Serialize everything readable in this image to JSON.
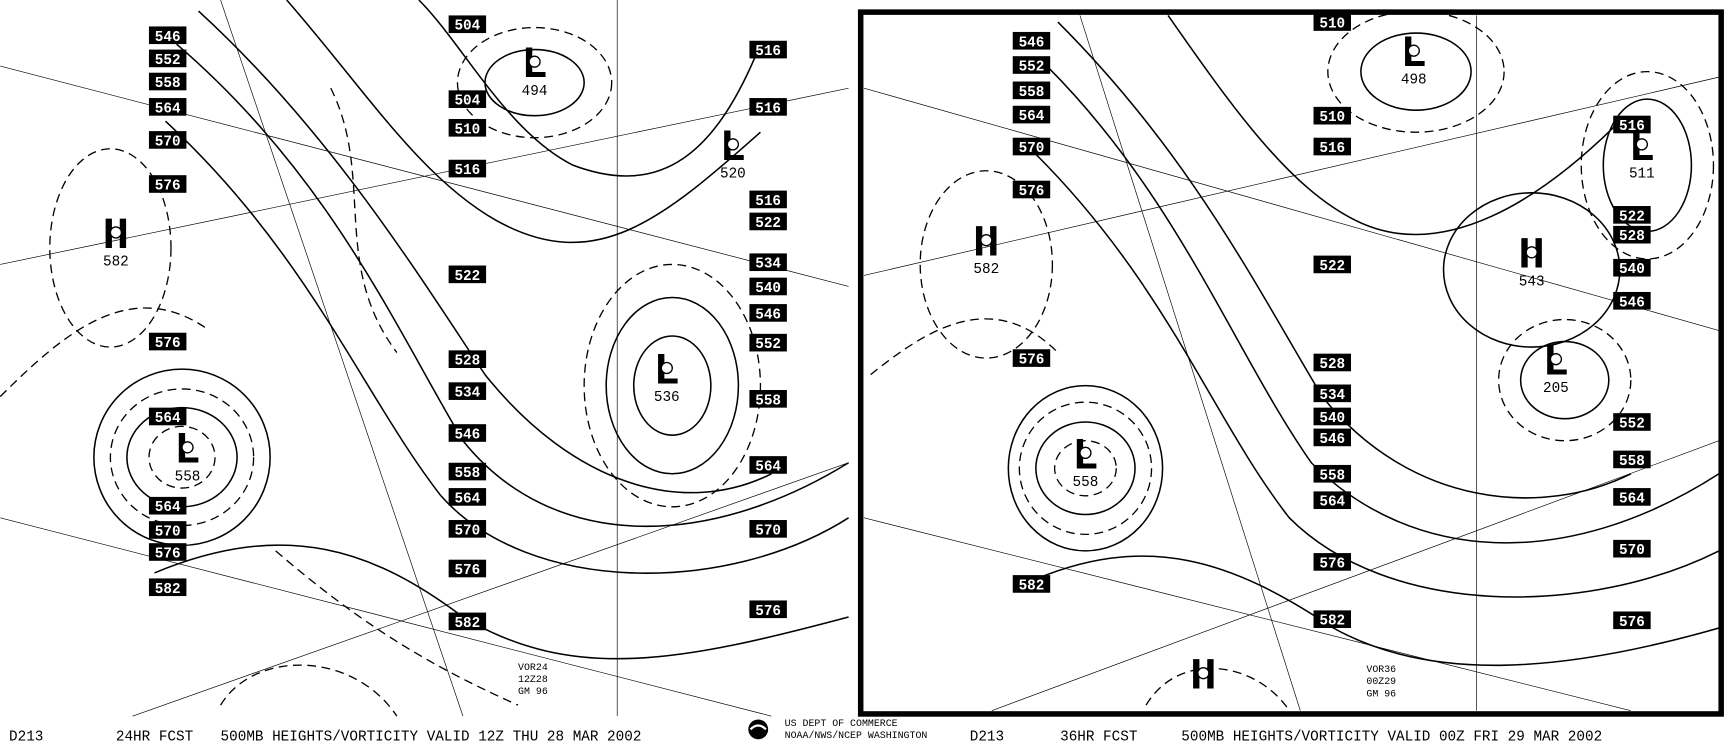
{
  "footer": {
    "agency": [
      "US DEPT OF COMMERCE",
      "NOAA/NWS/NCEP WASHINGTON"
    ]
  },
  "panels": [
    {
      "code": "D213",
      "forecast": "24HR FCST",
      "title": "500MB HEIGHTS/VORTICITY VALID 12Z THU 28 MAR 2002",
      "stamp": [
        "VOR24",
        "12Z28",
        "GM 96"
      ],
      "heights": [
        "546",
        "552",
        "558",
        "564",
        "570",
        "576",
        "576",
        "564",
        "564",
        "570",
        "576",
        "582",
        "504",
        "504",
        "510",
        "516",
        "522",
        "528",
        "534",
        "546",
        "558",
        "564",
        "570",
        "576",
        "582",
        "516",
        "516",
        "516",
        "522",
        "534",
        "540",
        "546",
        "552",
        "558",
        "564",
        "570",
        "576"
      ],
      "centers": [
        {
          "symbol": "L",
          "value": "494"
        },
        {
          "symbol": "L",
          "value": "520"
        },
        {
          "symbol": "H",
          "value": "582"
        },
        {
          "symbol": "L",
          "value": "536"
        },
        {
          "symbol": "L",
          "value": "558"
        }
      ]
    },
    {
      "code": "D213",
      "forecast": "36HR FCST",
      "title": "500MB HEIGHTS/VORTICITY VALID 00Z FRI 29 MAR 2002",
      "stamp": [
        "VOR36",
        "00Z29",
        "GM 96"
      ],
      "heights": [
        "546",
        "552",
        "558",
        "564",
        "570",
        "576",
        "576",
        "582",
        "510",
        "510",
        "516",
        "522",
        "528",
        "534",
        "540",
        "546",
        "558",
        "564",
        "576",
        "582",
        "516",
        "522",
        "528",
        "540",
        "546",
        "552",
        "558",
        "564",
        "570",
        "576"
      ],
      "centers": [
        {
          "symbol": "L",
          "value": "498"
        },
        {
          "symbol": "L",
          "value": "511"
        },
        {
          "symbol": "H",
          "value": "582"
        },
        {
          "symbol": "H",
          "value": "543"
        },
        {
          "symbol": "L",
          "value": "205"
        },
        {
          "symbol": "L",
          "value": "558"
        },
        {
          "symbol": "H"
        }
      ]
    }
  ]
}
